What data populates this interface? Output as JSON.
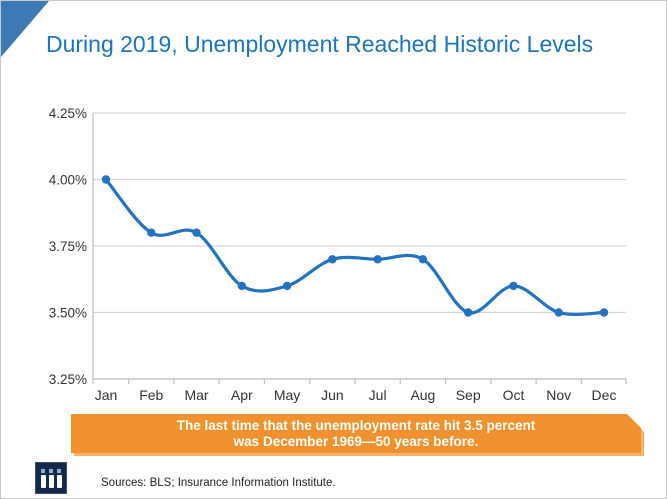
{
  "page": {
    "title": "During 2019, Unemployment Reached Historic Levels",
    "sources": "Sources: BLS; Insurance Information Institute."
  },
  "banner": {
    "line1": "The last time that the unemployment rate hit 3.5 percent",
    "line2": "was December 1969—50 years before."
  },
  "colors": {
    "title": "#1B75BC",
    "line": "#2173C2",
    "banner": "#F0912D",
    "banner_shadow": "#F6B266",
    "logo_bg": "#12294B",
    "grid": "#D6D6D6",
    "axis": "#BFBFBF",
    "tick_label": "#333333",
    "triangle": "#3D79B4"
  },
  "chart_data": {
    "type": "line",
    "title": "During 2019, Unemployment Reached Historic Levels",
    "categories": [
      "Jan",
      "Feb",
      "Mar",
      "Apr",
      "May",
      "Jun",
      "Jul",
      "Aug",
      "Sep",
      "Oct",
      "Nov",
      "Dec"
    ],
    "values": [
      4.0,
      3.8,
      3.8,
      3.6,
      3.6,
      3.7,
      3.7,
      3.7,
      3.5,
      3.6,
      3.5,
      3.5
    ],
    "unit": "percent",
    "ylim": [
      3.25,
      4.25
    ],
    "y_ticks": [
      4.25,
      4.0,
      3.75,
      3.5,
      3.25
    ],
    "y_tick_suffix": "%",
    "xlabel": "",
    "ylabel": "",
    "grid": "horizontal",
    "legend": "none",
    "marker": "circle",
    "smooth": true,
    "annotation": "The last time that the unemployment rate hit 3.5 percent was December 1969—50 years before."
  }
}
